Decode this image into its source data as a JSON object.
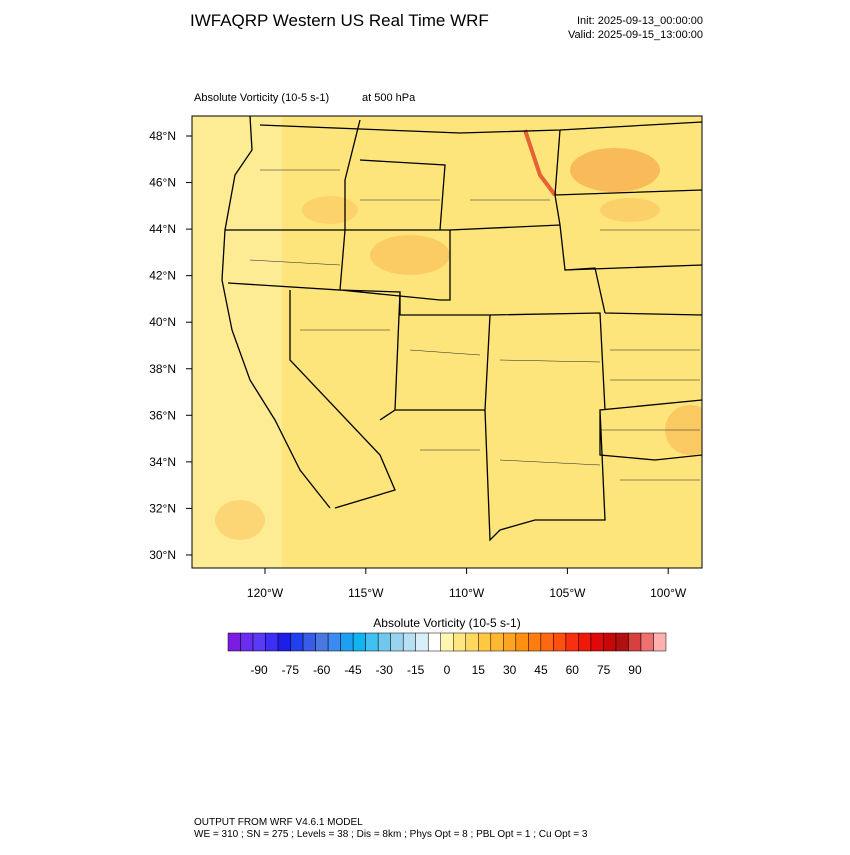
{
  "header": {
    "title": "IWFAQRP Western US Real Time WRF",
    "init": "Init: 2025-09-13_00:00:00",
    "valid": "Valid: 2025-09-15_13:00:00"
  },
  "map": {
    "field_label": "Absolute Vorticity   (10-5 s-1)",
    "level": "at   500 hPa",
    "lat_labels": [
      "48°N",
      "46°N",
      "44°N",
      "42°N",
      "40°N",
      "38°N",
      "36°N",
      "34°N",
      "32°N",
      "30°N"
    ],
    "lon_labels": [
      "120°W",
      "115°W",
      "110°W",
      "105°W",
      "100°W"
    ]
  },
  "colorbar": {
    "title": "Absolute Vorticity  (10-5 s-1)",
    "labels": [
      "-90",
      "-75",
      "-60",
      "-45",
      "-30",
      "-15",
      "0",
      "15",
      "30",
      "45",
      "60",
      "75",
      "90"
    ],
    "colors": [
      "#7a1de0",
      "#6a2cf0",
      "#5a3af8",
      "#3d2ef5",
      "#1e1ee8",
      "#2040f0",
      "#3a5ae8",
      "#4878e0",
      "#3a8cf0",
      "#1ea0f0",
      "#10b4f0",
      "#40c0f0",
      "#70c8f0",
      "#98d4f0",
      "#b8e0f4",
      "#d8eef8",
      "#ffffff",
      "#fff6b0",
      "#ffe680",
      "#ffd860",
      "#ffc840",
      "#ffb830",
      "#ffa420",
      "#ff9010",
      "#ff7c10",
      "#ff6810",
      "#ff5010",
      "#f83010",
      "#f01808",
      "#e00808",
      "#c80808",
      "#b01010",
      "#d84040",
      "#f07070",
      "#ffb0b0"
    ]
  },
  "footer": {
    "line1": "OUTPUT FROM WRF V4.6.1 MODEL",
    "line2": "WE = 310 ; SN = 275 ; Levels = 38 ; Dis = 8km ; Phys Opt = 8 ; PBL Opt = 1 ; Cu Opt = 3"
  }
}
